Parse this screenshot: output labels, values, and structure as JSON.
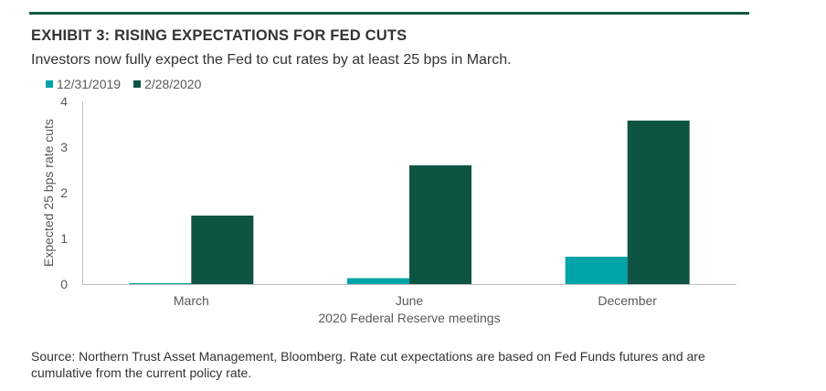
{
  "header": {
    "exhibit_title": "EXHIBIT 3: RISING EXPECTATIONS FOR FED CUTS",
    "subtitle": "Investors now fully expect the Fed to cut rates by at least 25 bps in March."
  },
  "footer": {
    "source": "Source: Northern Trust Asset Management, Bloomberg. Rate cut expectations are based on Fed Funds futures and are cumulative from the current policy rate."
  },
  "colors": {
    "rule": "#0f5a45",
    "series_2019": "#00a3a6",
    "series_2020": "#0e5443",
    "axis": "#bfbfbf",
    "text": "#595959"
  },
  "chart_data": {
    "type": "bar",
    "title": "",
    "xlabel": "2020 Federal Reserve meetings",
    "ylabel": "Expected 25 bps rate cuts",
    "categories": [
      "March",
      "June",
      "December"
    ],
    "series": [
      {
        "name": "12/31/2019",
        "values": [
          0.02,
          0.13,
          0.6
        ],
        "color": "#00a3a6"
      },
      {
        "name": "2/28/2020",
        "values": [
          1.5,
          2.6,
          3.58
        ],
        "color": "#0e5443"
      }
    ],
    "ylim": [
      0,
      4
    ],
    "yticks": [
      "0",
      "1",
      "2",
      "3",
      "4"
    ],
    "grid": false,
    "legend_position": "top-left"
  }
}
